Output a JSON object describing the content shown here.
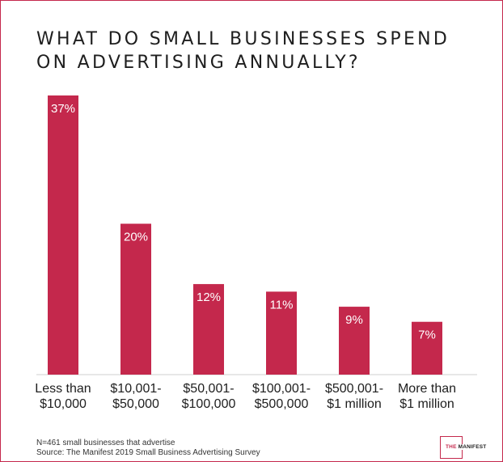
{
  "title": "WHAT DO SMALL BUSINESSES SPEND\nON ADVERTISING ANNUALLY?",
  "colors": {
    "bar": "#c4284c",
    "frame": "#c4284c",
    "text": "#1e1e1e"
  },
  "chart_data": {
    "type": "bar",
    "title": "WHAT DO SMALL BUSINESSES SPEND ON ADVERTISING ANNUALLY?",
    "categories": [
      [
        "Less than",
        "$10,000"
      ],
      [
        "$10,001-",
        "$50,000"
      ],
      [
        "$50,001-",
        "$100,000"
      ],
      [
        "$100,001-",
        "$500,000"
      ],
      [
        "$500,001-",
        "$1 million"
      ],
      [
        "More than",
        "$1 million"
      ]
    ],
    "values": [
      37,
      20,
      12,
      11,
      9,
      7
    ],
    "value_labels": [
      "37%",
      "20%",
      "12%",
      "11%",
      "9%",
      "7%"
    ],
    "unit": "%",
    "ylim": [
      0,
      37
    ],
    "grid": false,
    "legend": "none"
  },
  "footnotes": {
    "sample": "N=461 small businesses that advertise",
    "source": "Source: The Manifest 2019 Small Business Advertising Survey"
  },
  "logo": {
    "text_first": "THE",
    "text_rest": " MANIFEST"
  }
}
